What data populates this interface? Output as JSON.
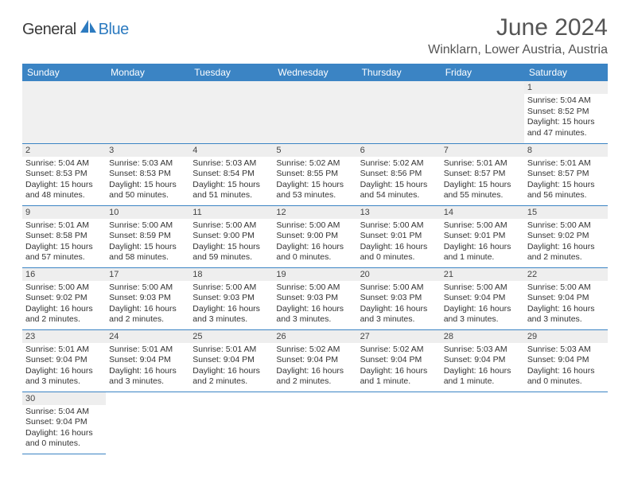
{
  "logo": {
    "text1": "General",
    "text2": "Blue"
  },
  "title": "June 2024",
  "location": "Winklarn, Lower Austria, Austria",
  "colors": {
    "header_bg": "#3b84c4",
    "header_text": "#ffffff",
    "daynum_bg": "#eeeeee",
    "cell_border": "#3b84c4",
    "logo_gray": "#3a3a3a",
    "logo_blue": "#2d7bc0"
  },
  "weekdays": [
    "Sunday",
    "Monday",
    "Tuesday",
    "Wednesday",
    "Thursday",
    "Friday",
    "Saturday"
  ],
  "leading_blanks": 6,
  "days": [
    {
      "n": 1,
      "sunrise": "5:04 AM",
      "sunset": "8:52 PM",
      "daylight": "15 hours and 47 minutes."
    },
    {
      "n": 2,
      "sunrise": "5:04 AM",
      "sunset": "8:53 PM",
      "daylight": "15 hours and 48 minutes."
    },
    {
      "n": 3,
      "sunrise": "5:03 AM",
      "sunset": "8:53 PM",
      "daylight": "15 hours and 50 minutes."
    },
    {
      "n": 4,
      "sunrise": "5:03 AM",
      "sunset": "8:54 PM",
      "daylight": "15 hours and 51 minutes."
    },
    {
      "n": 5,
      "sunrise": "5:02 AM",
      "sunset": "8:55 PM",
      "daylight": "15 hours and 53 minutes."
    },
    {
      "n": 6,
      "sunrise": "5:02 AM",
      "sunset": "8:56 PM",
      "daylight": "15 hours and 54 minutes."
    },
    {
      "n": 7,
      "sunrise": "5:01 AM",
      "sunset": "8:57 PM",
      "daylight": "15 hours and 55 minutes."
    },
    {
      "n": 8,
      "sunrise": "5:01 AM",
      "sunset": "8:57 PM",
      "daylight": "15 hours and 56 minutes."
    },
    {
      "n": 9,
      "sunrise": "5:01 AM",
      "sunset": "8:58 PM",
      "daylight": "15 hours and 57 minutes."
    },
    {
      "n": 10,
      "sunrise": "5:00 AM",
      "sunset": "8:59 PM",
      "daylight": "15 hours and 58 minutes."
    },
    {
      "n": 11,
      "sunrise": "5:00 AM",
      "sunset": "9:00 PM",
      "daylight": "15 hours and 59 minutes."
    },
    {
      "n": 12,
      "sunrise": "5:00 AM",
      "sunset": "9:00 PM",
      "daylight": "16 hours and 0 minutes."
    },
    {
      "n": 13,
      "sunrise": "5:00 AM",
      "sunset": "9:01 PM",
      "daylight": "16 hours and 0 minutes."
    },
    {
      "n": 14,
      "sunrise": "5:00 AM",
      "sunset": "9:01 PM",
      "daylight": "16 hours and 1 minute."
    },
    {
      "n": 15,
      "sunrise": "5:00 AM",
      "sunset": "9:02 PM",
      "daylight": "16 hours and 2 minutes."
    },
    {
      "n": 16,
      "sunrise": "5:00 AM",
      "sunset": "9:02 PM",
      "daylight": "16 hours and 2 minutes."
    },
    {
      "n": 17,
      "sunrise": "5:00 AM",
      "sunset": "9:03 PM",
      "daylight": "16 hours and 2 minutes."
    },
    {
      "n": 18,
      "sunrise": "5:00 AM",
      "sunset": "9:03 PM",
      "daylight": "16 hours and 3 minutes."
    },
    {
      "n": 19,
      "sunrise": "5:00 AM",
      "sunset": "9:03 PM",
      "daylight": "16 hours and 3 minutes."
    },
    {
      "n": 20,
      "sunrise": "5:00 AM",
      "sunset": "9:03 PM",
      "daylight": "16 hours and 3 minutes."
    },
    {
      "n": 21,
      "sunrise": "5:00 AM",
      "sunset": "9:04 PM",
      "daylight": "16 hours and 3 minutes."
    },
    {
      "n": 22,
      "sunrise": "5:00 AM",
      "sunset": "9:04 PM",
      "daylight": "16 hours and 3 minutes."
    },
    {
      "n": 23,
      "sunrise": "5:01 AM",
      "sunset": "9:04 PM",
      "daylight": "16 hours and 3 minutes."
    },
    {
      "n": 24,
      "sunrise": "5:01 AM",
      "sunset": "9:04 PM",
      "daylight": "16 hours and 3 minutes."
    },
    {
      "n": 25,
      "sunrise": "5:01 AM",
      "sunset": "9:04 PM",
      "daylight": "16 hours and 2 minutes."
    },
    {
      "n": 26,
      "sunrise": "5:02 AM",
      "sunset": "9:04 PM",
      "daylight": "16 hours and 2 minutes."
    },
    {
      "n": 27,
      "sunrise": "5:02 AM",
      "sunset": "9:04 PM",
      "daylight": "16 hours and 1 minute."
    },
    {
      "n": 28,
      "sunrise": "5:03 AM",
      "sunset": "9:04 PM",
      "daylight": "16 hours and 1 minute."
    },
    {
      "n": 29,
      "sunrise": "5:03 AM",
      "sunset": "9:04 PM",
      "daylight": "16 hours and 0 minutes."
    },
    {
      "n": 30,
      "sunrise": "5:04 AM",
      "sunset": "9:04 PM",
      "daylight": "16 hours and 0 minutes."
    }
  ],
  "labels": {
    "sunrise": "Sunrise:",
    "sunset": "Sunset:",
    "daylight": "Daylight:"
  }
}
